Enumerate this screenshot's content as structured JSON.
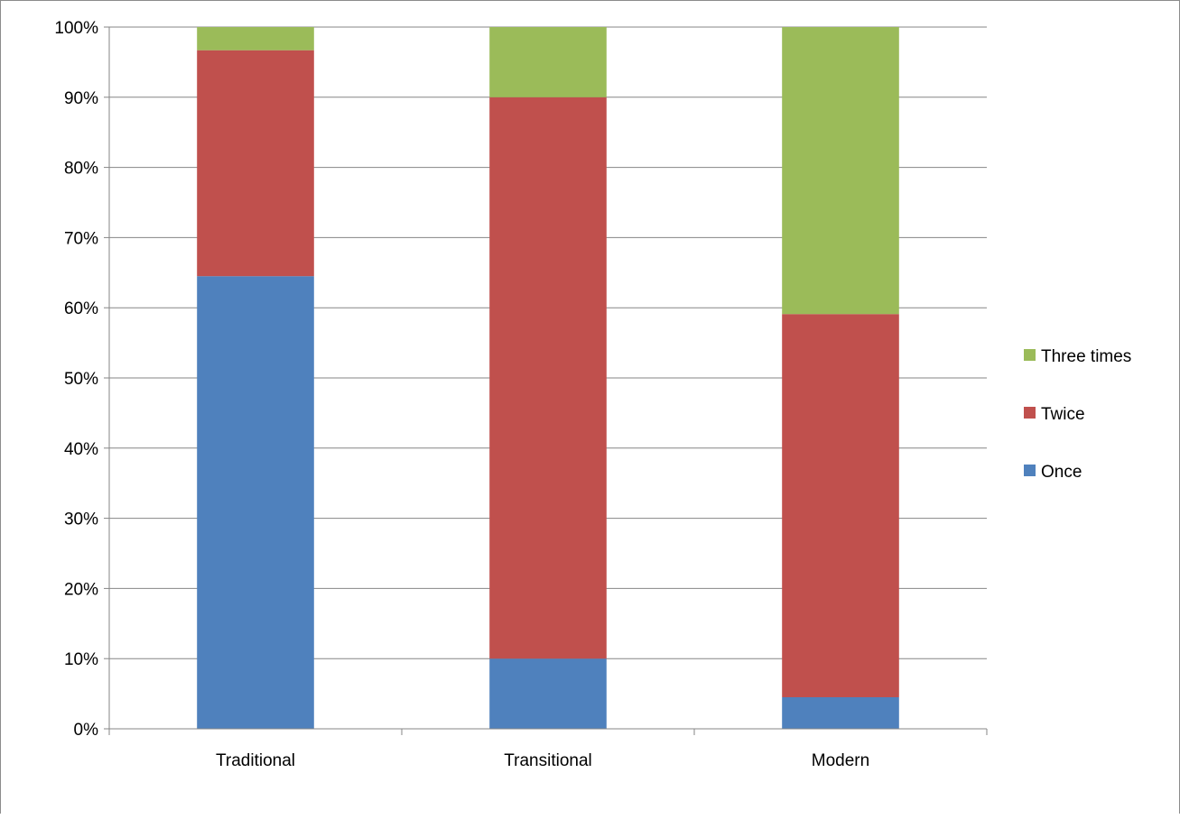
{
  "chart_data": {
    "type": "bar",
    "stacked": "percent",
    "title": "",
    "xlabel": "",
    "ylabel": "",
    "categories": [
      "Traditional",
      "Transitional",
      "Modern"
    ],
    "series": [
      {
        "name": "Once",
        "color": "#4F81BD",
        "values": [
          64.5,
          10,
          4.5
        ]
      },
      {
        "name": "Twice",
        "color": "#C0504D",
        "values": [
          32.2,
          80,
          54.6
        ]
      },
      {
        "name": "Three times",
        "color": "#9BBB59",
        "values": [
          3.3,
          10,
          40.9
        ]
      }
    ],
    "ylim": [
      0,
      100
    ],
    "yticks": [
      "0%",
      "10%",
      "20%",
      "30%",
      "40%",
      "50%",
      "60%",
      "70%",
      "80%",
      "90%",
      "100%"
    ],
    "grid": true,
    "legend": "right",
    "legend_order": [
      "Three times",
      "Twice",
      "Once"
    ]
  }
}
